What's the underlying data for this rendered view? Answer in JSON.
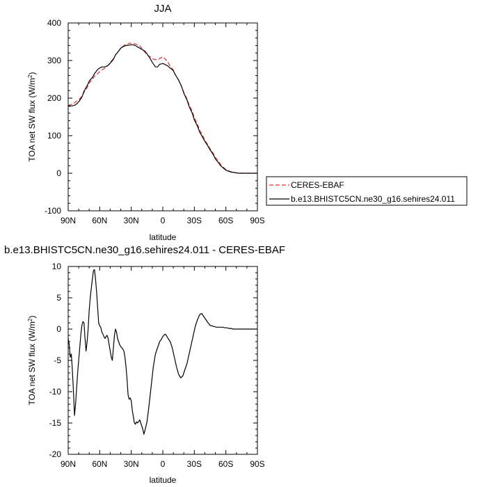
{
  "chart_data": [
    {
      "type": "line",
      "title": "JJA",
      "xlabel": "latitude",
      "ylabel": "TOA net SW flux (W/m",
      "ylabel_sup": "2",
      "ylabel_close": ")",
      "xlim": [
        90,
        -90
      ],
      "ylim": [
        -100,
        400
      ],
      "xticks": [
        90,
        60,
        30,
        0,
        -30,
        -60,
        -90
      ],
      "xtick_labels": [
        "90N",
        "60N",
        "30N",
        "0",
        "30S",
        "60S",
        "90S"
      ],
      "yticks": [
        -100,
        0,
        100,
        200,
        300,
        400
      ],
      "ytick_labels": [
        "-100",
        "0",
        "100",
        "200",
        "300",
        "400"
      ],
      "grid": false,
      "legend": "right, outside plot",
      "series": [
        {
          "name": "CERES-EBAF",
          "color": "#e03030",
          "style": "dashed",
          "x": [
            90,
            87,
            85,
            83,
            80,
            77,
            75,
            72,
            70,
            67,
            65,
            62,
            60,
            58,
            55,
            52,
            50,
            47,
            45,
            42,
            40,
            37,
            35,
            32,
            30,
            27,
            25,
            22,
            20,
            17,
            15,
            12,
            10,
            7,
            5,
            3,
            0,
            -2,
            -5,
            -7,
            -10,
            -12,
            -15,
            -18,
            -20,
            -23,
            -25,
            -28,
            -30,
            -33,
            -35,
            -38,
            -40,
            -43,
            -45,
            -48,
            -50,
            -53,
            -55,
            -58,
            -60,
            -63,
            -65,
            -68,
            -70,
            -73,
            -75,
            -78,
            -80,
            -83,
            -85,
            -88,
            -90
          ],
          "y": [
            180,
            183,
            185,
            190,
            195,
            205,
            215,
            228,
            240,
            250,
            258,
            265,
            270,
            275,
            280,
            287,
            295,
            305,
            315,
            325,
            333,
            340,
            343,
            346,
            346,
            345,
            343,
            340,
            332,
            322,
            315,
            310,
            305,
            302,
            303,
            305,
            310,
            305,
            295,
            285,
            275,
            262,
            248,
            230,
            215,
            198,
            182,
            165,
            148,
            130,
            115,
            100,
            88,
            75,
            65,
            53,
            42,
            32,
            23,
            15,
            10,
            6,
            4,
            2,
            1,
            0,
            0,
            0,
            0,
            0,
            0,
            0,
            0
          ]
        },
        {
          "name": "b.e13.BHISTC5CN.ne30_g16.sehires24.011",
          "color": "#000000",
          "style": "solid",
          "x": [
            90,
            87,
            85,
            83,
            80,
            77,
            75,
            72,
            70,
            67,
            65,
            62,
            60,
            58,
            55,
            52,
            50,
            47,
            45,
            42,
            40,
            37,
            35,
            32,
            30,
            27,
            25,
            22,
            20,
            17,
            15,
            12,
            10,
            7,
            5,
            3,
            0,
            -2,
            -5,
            -7,
            -10,
            -12,
            -15,
            -18,
            -20,
            -23,
            -25,
            -28,
            -30,
            -33,
            -35,
            -38,
            -40,
            -43,
            -45,
            -48,
            -50,
            -53,
            -55,
            -58,
            -60,
            -63,
            -65,
            -68,
            -70,
            -73,
            -75,
            -78,
            -80,
            -83,
            -85,
            -88,
            -90
          ],
          "y": [
            178,
            179,
            180,
            182,
            190,
            202,
            218,
            233,
            245,
            255,
            265,
            276,
            280,
            283,
            283,
            287,
            293,
            303,
            315,
            325,
            333,
            338,
            340,
            341,
            342,
            341,
            338,
            333,
            330,
            325,
            318,
            305,
            295,
            283,
            283,
            290,
            292,
            290,
            285,
            280,
            273,
            262,
            248,
            230,
            213,
            195,
            178,
            160,
            142,
            125,
            110,
            95,
            85,
            72,
            62,
            50,
            38,
            28,
            20,
            13,
            8,
            5,
            3,
            2,
            1,
            0,
            0,
            0,
            0,
            0,
            0,
            0,
            0
          ]
        }
      ]
    },
    {
      "type": "line",
      "title": "b.e13.BHISTC5CN.ne30_g16.sehires24.011 - CERES-EBAF",
      "xlabel": "latitude",
      "ylabel": "TOA net SW flux (W/m",
      "ylabel_sup": "2",
      "ylabel_close": ")",
      "xlim": [
        90,
        -90
      ],
      "ylim": [
        -20,
        10
      ],
      "xticks": [
        90,
        60,
        30,
        0,
        -30,
        -60,
        -90
      ],
      "xtick_labels": [
        "90N",
        "60N",
        "30N",
        "0",
        "30S",
        "60S",
        "90S"
      ],
      "yticks": [
        -20,
        -15,
        -10,
        -5,
        0,
        5,
        10
      ],
      "ytick_labels": [
        "-20",
        "-15",
        "-10",
        "-5",
        "0",
        "5",
        "10"
      ],
      "grid": false,
      "series": [
        {
          "color": "#000000",
          "style": "solid",
          "x": [
            90,
            89,
            88,
            87,
            86,
            85,
            84,
            83,
            82,
            81,
            80,
            79,
            78,
            77,
            76,
            75,
            74,
            73,
            72,
            71,
            70,
            69,
            68,
            67,
            66,
            65,
            64,
            63,
            62,
            61,
            60,
            59,
            58,
            57,
            56,
            55,
            54,
            53,
            52,
            51,
            50,
            49,
            48,
            47,
            46,
            45,
            44,
            43,
            42,
            41,
            40,
            39,
            38,
            37,
            36,
            35,
            34,
            33,
            32,
            31,
            30,
            29,
            28,
            27,
            26,
            25,
            24,
            23,
            22,
            21,
            20,
            19,
            18,
            17,
            16,
            15,
            14,
            13,
            12,
            11,
            10,
            9,
            8,
            7,
            6,
            5,
            4,
            3,
            2,
            1,
            0,
            -1,
            -2,
            -3,
            -4,
            -5,
            -7,
            -9,
            -11,
            -13,
            -15,
            -17,
            -19,
            -21,
            -23,
            -25,
            -27,
            -29,
            -31,
            -33,
            -35,
            -37,
            -39,
            -41,
            -43,
            -45,
            -47,
            -49,
            -51,
            -53,
            -55,
            -57,
            -59,
            -61,
            -63,
            -65,
            -67,
            -69,
            -71,
            -73,
            -75,
            -77,
            -79,
            -81,
            -83,
            -85,
            -87,
            -90
          ],
          "y": [
            -1.5,
            -2.5,
            -4.5,
            -4.0,
            -6.5,
            -10.0,
            -13.8,
            -12.0,
            -9.5,
            -7.0,
            -5.0,
            -3.0,
            -1.0,
            0.5,
            1.2,
            1.0,
            -1.5,
            -3.5,
            -2.0,
            0.0,
            3.0,
            5.0,
            6.5,
            8.0,
            9.3,
            9.5,
            8.0,
            6.0,
            3.5,
            1.0,
            0.5,
            0.3,
            -0.5,
            -0.8,
            -1.2,
            -1.5,
            -1.2,
            -1.0,
            -1.5,
            -2.5,
            -3.5,
            -4.5,
            -5.0,
            -3.0,
            -1.0,
            0.0,
            -0.5,
            -1.5,
            -2.0,
            -2.5,
            -2.8,
            -3.0,
            -3.2,
            -3.5,
            -4.5,
            -6.0,
            -8.0,
            -10.5,
            -11.2,
            -11.0,
            -11.5,
            -13.0,
            -14.0,
            -15.0,
            -15.2,
            -14.8,
            -15.0,
            -14.8,
            -14.5,
            -15.0,
            -15.5,
            -16.0,
            -16.8,
            -16.2,
            -15.5,
            -14.8,
            -13.5,
            -12.0,
            -10.5,
            -9.0,
            -7.5,
            -6.0,
            -5.0,
            -4.0,
            -3.5,
            -3.0,
            -2.5,
            -2.0,
            -1.8,
            -1.5,
            -1.2,
            -1.0,
            -0.8,
            -0.9,
            -1.2,
            -1.5,
            -2.0,
            -3.0,
            -4.5,
            -6.0,
            -7.2,
            -7.8,
            -7.5,
            -6.5,
            -5.5,
            -4.0,
            -2.5,
            -1.0,
            0.5,
            1.5,
            2.3,
            2.5,
            2.0,
            1.5,
            1.0,
            0.6,
            0.5,
            0.4,
            0.3,
            0.3,
            0.3,
            0.3,
            0.2,
            0.2,
            0.1,
            0.1,
            0.0,
            0.0,
            0.0,
            0.0,
            0.0,
            0.0,
            0.0,
            0.0,
            0.0,
            0.0,
            0.0,
            0.0
          ]
        }
      ]
    }
  ]
}
